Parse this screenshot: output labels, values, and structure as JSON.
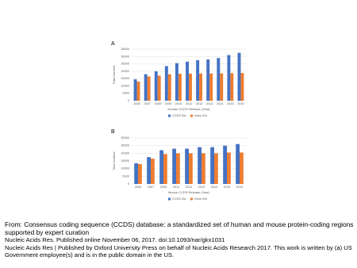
{
  "chart_data": [
    {
      "type": "bar",
      "title": "A",
      "x_label": "Human CCDS Release (Year)",
      "y_label": "Total Number",
      "categories": [
        "2005",
        "2007",
        "2008",
        "2009",
        "2010",
        "2011",
        "2012",
        "2013",
        "2014",
        "2015",
        "2016"
      ],
      "series": [
        {
          "name": "CCDS IDs",
          "color": "#4472c4",
          "values": [
            14500,
            18000,
            20000,
            23500,
            25500,
            26500,
            27500,
            28000,
            29000,
            31000,
            32500
          ]
        },
        {
          "name": "Gene IDs",
          "color": "#ed7d31",
          "values": [
            13000,
            16500,
            17000,
            18000,
            18300,
            18400,
            18500,
            18500,
            18600,
            18700,
            18800
          ]
        }
      ],
      "ylim": [
        0,
        35000
      ],
      "yticks": [
        0,
        5000,
        10000,
        15000,
        20000,
        25000,
        30000,
        35000
      ],
      "grid": true,
      "legend": "bottom"
    },
    {
      "type": "bar",
      "title": "B",
      "x_label": "Mouse CCDS Release (Year)",
      "y_label": "Total Number",
      "categories": [
        "2006",
        "2007",
        "2009",
        "2011",
        "2012",
        "2013",
        "2014",
        "2015",
        "2016"
      ],
      "series": [
        {
          "name": "CCDS IDs",
          "color": "#4472c4",
          "values": [
            13500,
            17500,
            22000,
            23000,
            23000,
            24000,
            24000,
            25000,
            26000
          ]
        },
        {
          "name": "Gene IDs",
          "color": "#ed7d31",
          "values": [
            13000,
            16500,
            19500,
            20000,
            20000,
            20000,
            20000,
            20500,
            20500
          ]
        }
      ],
      "ylim": [
        0,
        30000
      ],
      "yticks": [
        0,
        5000,
        10000,
        15000,
        20000,
        25000,
        30000
      ],
      "grid": true,
      "legend": "bottom"
    }
  ],
  "caption": {
    "from": "From: Consensus coding sequence (CCDS) database: a standardized set of human and mouse protein-coding regions supported by expert curation",
    "citation": "Nucleic Acids Res. Published online  November 06, 2017. doi:10.1093/nar/gkx1031",
    "copyright": "Nucleic Acids Res | Published by Oxford University Press on behalf of Nucleic Acids Research 2017. This work is written by (a) US Government employee(s) and is in the public domain in the US."
  }
}
